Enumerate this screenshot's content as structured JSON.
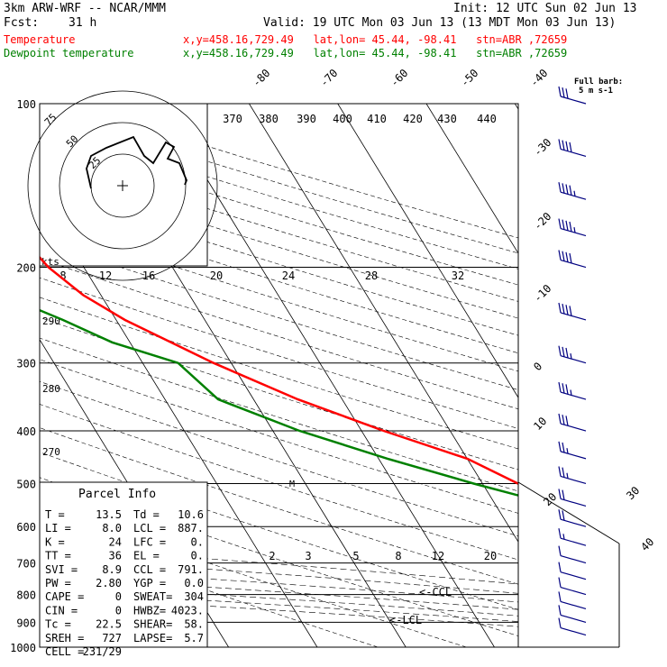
{
  "header": {
    "model": "3km ARW-WRF -- NCAR/MMM",
    "init": "Init: 12 UTC Sun 02 Jun 13",
    "fcst_label": "Fcst:",
    "fcst_value": "31 h",
    "valid": "Valid: 19 UTC Mon 03 Jun 13 (13 MDT Mon 03 Jun 13)",
    "temp_label": "Temperature",
    "dew_label": "Dewpoint temperature",
    "station_info": "x,y=458.16,729.49   lat,lon= 45.44, -98.41   stn=ABR ,72659"
  },
  "colors": {
    "temperature": "#ff0000",
    "dewpoint": "#008000",
    "wind": "#000080",
    "background": "#ffffff",
    "lines": "#000000"
  },
  "parcel_info": {
    "title": "Parcel Info",
    "rows": [
      [
        "T  =",
        "13.5",
        "Td =",
        "10.6"
      ],
      [
        "LI =",
        "8.0",
        "LCL =",
        "887."
      ],
      [
        "K  =",
        "24",
        "LFC =",
        "0."
      ],
      [
        "TT =",
        "36",
        "EL  =",
        "0."
      ],
      [
        "SVI =",
        "8.9",
        "CCL =",
        "791."
      ],
      [
        "PW =",
        "2.80",
        "YGP =",
        "0.0"
      ],
      [
        "CAPE =",
        "0",
        "SWEAT=",
        "304"
      ],
      [
        "CIN =",
        "0",
        "HWBZ=",
        "4023."
      ],
      [
        "Tc =",
        "22.5",
        "SHEAR=",
        "58."
      ],
      [
        "SREH =",
        "727",
        "LAPSE=",
        "5.7"
      ],
      [
        "CELL =",
        "231/29",
        "",
        ""
      ]
    ]
  },
  "barb_legend": {
    "line1": "Full barb:",
    "line2": "5 m s-1"
  },
  "hodograph": {
    "units_label": "kts",
    "ring_labels": [
      "25",
      "50",
      "75"
    ]
  },
  "level_markers": {
    "lcl": "<-LCL",
    "ccl": "<-CCL"
  },
  "chart_data": {
    "type": "skew-t log-p diagram",
    "pressure_levels_hPa": [
      100,
      200,
      300,
      400,
      500,
      600,
      700,
      800,
      900,
      1000
    ],
    "y_axis_scale": "log-pressure",
    "temperature_isotherm_labels": [
      "-80",
      "-70",
      "-60",
      "-50",
      "-40",
      "-30",
      "-20",
      "-10",
      "0",
      "10",
      "20",
      "30",
      "40"
    ],
    "theta_labels_top": [
      "370",
      "380",
      "390",
      "400",
      "410",
      "420",
      "430",
      "440"
    ],
    "theta_labels_left": [
      "290",
      "280",
      "270"
    ],
    "mixing_ratio_labels": [
      "2",
      "3",
      "5",
      "8",
      "12",
      "20"
    ],
    "hodograph_speed_labels": [
      "8",
      "12",
      "16",
      "20",
      "24",
      "28",
      "32"
    ],
    "series": [
      {
        "name": "Temperature",
        "pressure": [
          100,
          125,
          150,
          175,
          200,
          225,
          250,
          300,
          350,
          400,
          450,
          500,
          550,
          600,
          650,
          700,
          750,
          800,
          850,
          900,
          950,
          975
        ],
        "temperature_C": [
          -58,
          -57,
          -56,
          -55,
          -54,
          -52,
          -49,
          -42,
          -35,
          -27.5,
          -20,
          -16,
          -9.5,
          -3.5,
          1,
          2,
          6.5,
          12.5,
          10,
          10,
          12.5,
          15.5
        ]
      },
      {
        "name": "Dewpoint temperature",
        "pressure": [
          100,
          130,
          150,
          175,
          200,
          225,
          250,
          275,
          300,
          350,
          400,
          450,
          500,
          550,
          600,
          650,
          700,
          750,
          800,
          850,
          900,
          950
        ],
        "dewpoint_C": [
          -75,
          -78,
          -75,
          -70.5,
          -66,
          -61,
          -56,
          -52,
          -46,
          -44,
          -37,
          -29,
          -21,
          -13,
          -6,
          -0.5,
          1.5,
          0.5,
          -9,
          -3.5,
          4,
          7.5
        ]
      }
    ],
    "wind_barbs": {
      "side": "right",
      "pressure": [
        100,
        125,
        150,
        175,
        200,
        250,
        300,
        350,
        400,
        450,
        500,
        550,
        600,
        650,
        700,
        750,
        800,
        850,
        900,
        950
      ],
      "speed_ms": [
        30,
        40,
        45,
        45,
        40,
        40,
        35,
        35,
        30,
        25,
        25,
        20,
        20,
        15,
        12,
        10,
        10,
        10,
        12,
        10
      ]
    }
  }
}
